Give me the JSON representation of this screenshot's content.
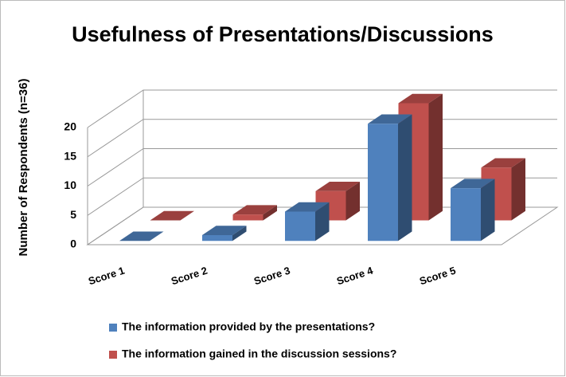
{
  "chart_data": {
    "type": "bar3d",
    "title": "Usefulness of Presentations/Discussions",
    "y_label": "Number of Respondents (n=36)",
    "categories": [
      "Score 1",
      "Score 2",
      "Score 3",
      "Score 4",
      "Score 5"
    ],
    "series": [
      {
        "name": "The information provided by the presentations?",
        "color": "#4f81bd",
        "values": [
          0,
          1,
          5,
          20,
          9
        ]
      },
      {
        "name": "The information gained in the discussion sessions?",
        "color": "#c0504d",
        "values": [
          0,
          1,
          5,
          20,
          9
        ]
      }
    ],
    "ylim": [
      0,
      20
    ],
    "yticks": [
      0,
      5,
      10,
      15,
      20
    ],
    "grid": true
  }
}
